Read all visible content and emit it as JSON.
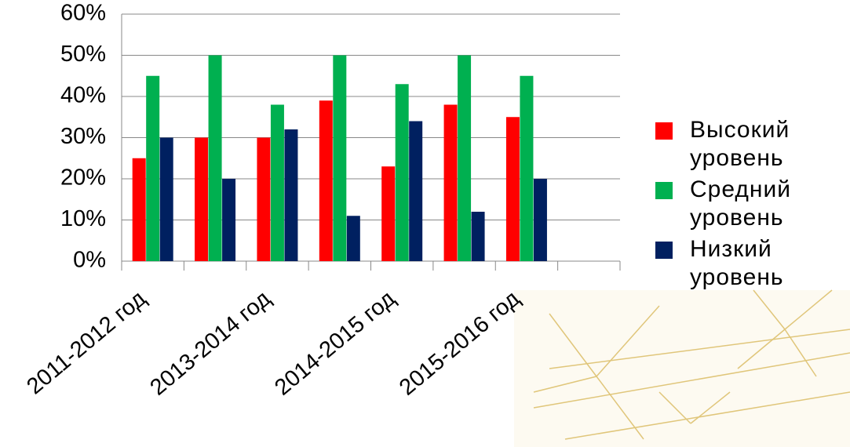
{
  "chart_data": {
    "type": "bar",
    "categories": [
      "2011-2012 год",
      null,
      "2013-2014 год",
      null,
      "2014-2015 год",
      null,
      "2015-2016 год",
      null
    ],
    "series": [
      {
        "name": "Высокий уровень",
        "color": "#ff0000",
        "values": [
          25,
          30,
          30,
          39,
          23,
          38,
          35,
          null
        ]
      },
      {
        "name": "Средний уровень",
        "color": "#00b050",
        "values": [
          45,
          50,
          38,
          50,
          43,
          50,
          45,
          null
        ]
      },
      {
        "name": "Низкий уровень",
        "color": "#002060",
        "values": [
          30,
          20,
          32,
          11,
          34,
          12,
          20,
          null
        ]
      }
    ],
    "ylim": [
      0,
      60
    ],
    "yticks": [
      {
        "value": 0,
        "label": "0%"
      },
      {
        "value": 10,
        "label": "10%"
      },
      {
        "value": 20,
        "label": "20%"
      },
      {
        "value": 30,
        "label": "30%"
      },
      {
        "value": 40,
        "label": "40%"
      },
      {
        "value": 50,
        "label": "50%"
      },
      {
        "value": 60,
        "label": "60%"
      }
    ],
    "grid": true,
    "legend": "right"
  }
}
